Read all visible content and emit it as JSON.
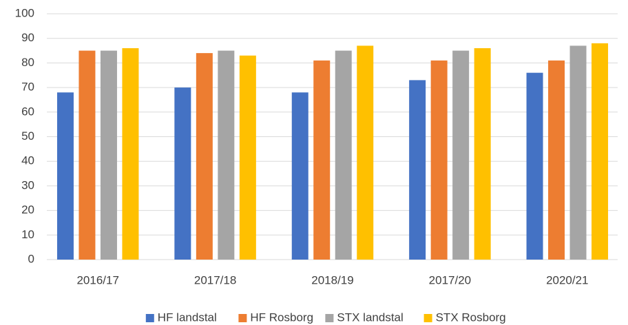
{
  "chart_data": {
    "type": "bar",
    "categories": [
      "2016/17",
      "2017/18",
      "2018/19",
      "2017/20",
      "2020/21"
    ],
    "series": [
      {
        "name": "HF landstal",
        "color": "#4472c4",
        "values": [
          68,
          70,
          68,
          73,
          76
        ]
      },
      {
        "name": "HF Rosborg",
        "color": "#ed7d31",
        "values": [
          85,
          84,
          81,
          81,
          81
        ]
      },
      {
        "name": "STX landstal",
        "color": "#a5a5a5",
        "values": [
          85,
          85,
          85,
          85,
          87
        ]
      },
      {
        "name": "STX Rosborg",
        "color": "#ffc000",
        "values": [
          86,
          83,
          87,
          86,
          88
        ]
      }
    ],
    "ylim": [
      0,
      100
    ],
    "yticks": [
      0,
      10,
      20,
      30,
      40,
      50,
      60,
      70,
      80,
      90,
      100
    ],
    "grid": true,
    "legend": "bottom"
  }
}
